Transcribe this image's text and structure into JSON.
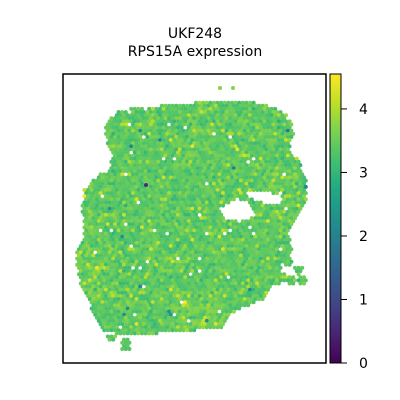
{
  "chart_data": {
    "type": "heatmap",
    "subtype": "spatial-spot-map",
    "title_lines": [
      "UKF248",
      "RPS15A expression"
    ],
    "axes_visible": false,
    "legend": "colorbar-right",
    "colormap": "viridis",
    "colorbar": {
      "range": [
        0,
        4.55
      ],
      "ticks": [
        0,
        1,
        2,
        3,
        4
      ],
      "tick_labels": [
        "0",
        "1",
        "2",
        "3",
        "4"
      ]
    },
    "value_distribution": {
      "typical_range": [
        2.9,
        3.9
      ],
      "mode": 3.4
    }
  },
  "colors": {
    "frame": "#000000",
    "background": "#ffffff"
  }
}
